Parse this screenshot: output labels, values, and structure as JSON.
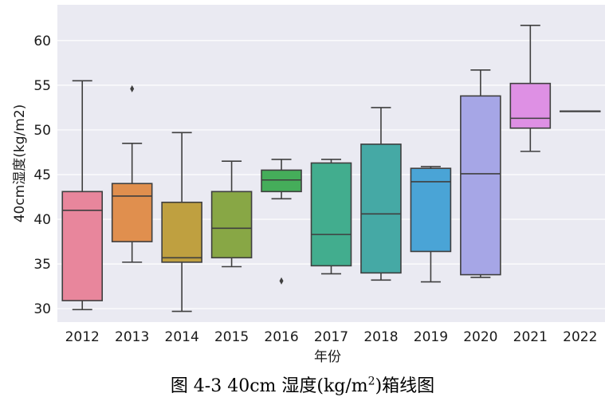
{
  "chart_data": {
    "type": "box",
    "title": "",
    "xlabel": "年份",
    "ylabel": "40cm湿度(kg/m2)",
    "ylim": [
      28.5,
      64
    ],
    "yticks": [
      30,
      35,
      40,
      45,
      50,
      55,
      60
    ],
    "grid": "horizontal",
    "categories": [
      "2012",
      "2013",
      "2014",
      "2015",
      "2016",
      "2017",
      "2018",
      "2019",
      "2020",
      "2021",
      "2022"
    ],
    "boxes": [
      {
        "year": "2012",
        "min": 29.9,
        "q1": 30.9,
        "median": 41.0,
        "q3": 43.1,
        "max": 55.5,
        "outliers": [],
        "color": "#e8869c"
      },
      {
        "year": "2013",
        "min": 35.2,
        "q1": 37.5,
        "median": 42.6,
        "q3": 44.0,
        "max": 48.5,
        "outliers": [
          54.6
        ],
        "color": "#e08f4e"
      },
      {
        "year": "2014",
        "min": 29.7,
        "q1": 35.2,
        "median": 35.7,
        "q3": 41.9,
        "max": 49.7,
        "outliers": [],
        "color": "#bfa040"
      },
      {
        "year": "2015",
        "min": 34.7,
        "q1": 35.7,
        "median": 39.0,
        "q3": 43.1,
        "max": 46.5,
        "outliers": [],
        "color": "#88a745"
      },
      {
        "year": "2016",
        "min": 42.3,
        "q1": 43.1,
        "median": 44.4,
        "q3": 45.5,
        "max": 46.7,
        "outliers": [
          33.1
        ],
        "color": "#45ad5a"
      },
      {
        "year": "2017",
        "min": 33.9,
        "q1": 34.8,
        "median": 38.3,
        "q3": 46.3,
        "max": 46.7,
        "outliers": [],
        "color": "#42ad8e"
      },
      {
        "year": "2018",
        "min": 33.2,
        "q1": 34.0,
        "median": 40.6,
        "q3": 48.4,
        "max": 52.5,
        "outliers": [],
        "color": "#45a9a5"
      },
      {
        "year": "2019",
        "min": 33.0,
        "q1": 36.4,
        "median": 44.2,
        "q3": 45.7,
        "max": 45.9,
        "outliers": [],
        "color": "#4aa4d6"
      },
      {
        "year": "2020",
        "min": 33.5,
        "q1": 33.8,
        "median": 45.1,
        "q3": 53.8,
        "max": 56.7,
        "outliers": [],
        "color": "#a6a6e6"
      },
      {
        "year": "2021",
        "min": 47.6,
        "q1": 50.2,
        "median": 51.3,
        "q3": 55.2,
        "max": 61.7,
        "outliers": [],
        "color": "#de90e4"
      },
      {
        "year": "2022",
        "min": 52.1,
        "q1": 52.1,
        "median": 52.1,
        "q3": 52.1,
        "max": 52.1,
        "outliers": [],
        "color": "#ee88c8"
      }
    ]
  },
  "caption": {
    "prefix": "图 4-3 40cm 湿度(kg/m",
    "superscript": "2",
    "suffix": ")箱线图"
  }
}
